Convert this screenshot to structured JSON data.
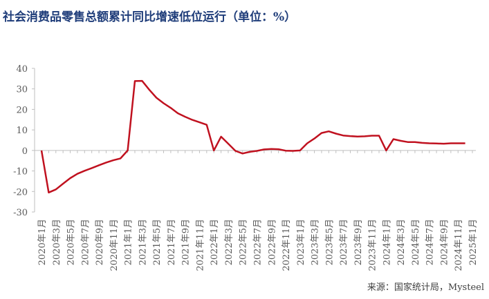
{
  "chart_data": {
    "type": "line",
    "title": "社会消费品零售总额累计同比增速低位运行（单位：%）",
    "source": "来源：国家统计局，Mysteel",
    "categories": [
      "2020年1月",
      null,
      "2020年3月",
      null,
      "2020年5月",
      null,
      "2020年7月",
      null,
      "2020年9月",
      null,
      "2020年11月",
      null,
      "2021年1月",
      null,
      "2021年3月",
      null,
      "2021年5月",
      null,
      "2021年7月",
      null,
      "2021年9月",
      null,
      "2021年11月",
      null,
      "2022年1月",
      null,
      "2022年3月",
      null,
      "2022年5月",
      null,
      "2022年7月",
      null,
      "2022年9月",
      null,
      "2022年11月",
      null,
      "2023年1月",
      null,
      "2023年3月",
      null,
      "2023年5月",
      null,
      "2023年7月",
      null,
      "2023年9月",
      null,
      "2023年11月",
      null,
      "2024年1月",
      null,
      "2024年3月",
      null,
      "2024年5月",
      null,
      "2024年7月",
      null,
      "2024年9月",
      null,
      "2024年11月",
      null,
      "2025年1月"
    ],
    "series": [
      {
        "color": "#c0111f",
        "values": [
          0,
          -20.5,
          -19.0,
          -16.2,
          -13.5,
          -11.4,
          -9.9,
          -8.6,
          -7.2,
          -5.9,
          -4.8,
          -3.9,
          0,
          33.8,
          33.9,
          29.6,
          25.7,
          23.0,
          20.7,
          18.1,
          16.4,
          14.9,
          13.7,
          12.5,
          0,
          6.7,
          3.3,
          -0.2,
          -1.5,
          -0.7,
          -0.2,
          0.5,
          0.7,
          0.6,
          -0.1,
          -0.2,
          0,
          3.5,
          5.8,
          8.5,
          9.3,
          8.2,
          7.3,
          7.0,
          6.8,
          6.9,
          7.2,
          7.2,
          0,
          5.5,
          4.7,
          4.1,
          4.1,
          3.7,
          3.5,
          3.4,
          3.3,
          3.5,
          3.5,
          3.5,
          null
        ]
      }
    ],
    "ylim": [
      -30,
      40
    ],
    "yticks": [
      -30,
      -20,
      -10,
      0,
      10,
      20,
      30,
      40
    ]
  }
}
